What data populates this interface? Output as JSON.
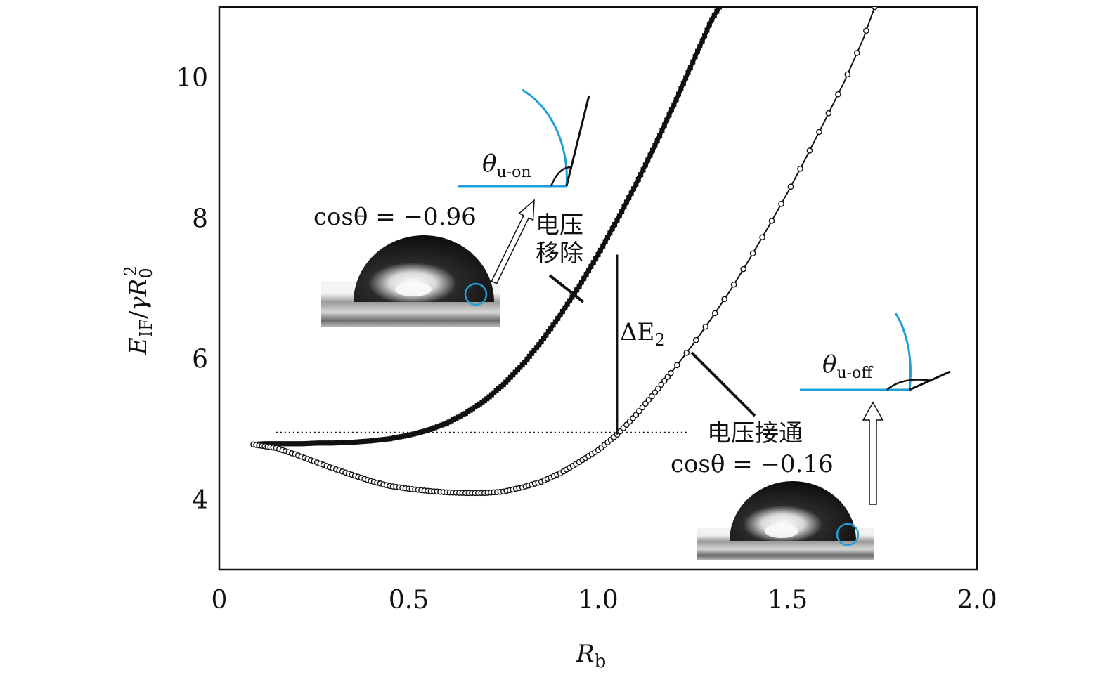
{
  "chart_data": {
    "type": "scatter",
    "xlabel": "R_b",
    "ylabel": "E_IF/γR_0^2",
    "xlim": [
      0,
      2.0
    ],
    "ylim": [
      3,
      11
    ],
    "x_ticks": [
      "0",
      "0.5",
      "1.0",
      "1.5",
      "2.0"
    ],
    "y_ticks": [
      "4",
      "6",
      "8",
      "10"
    ],
    "x_tick_values": [
      0,
      0.5,
      1.0,
      1.5,
      2.0
    ],
    "y_tick_values": [
      4,
      6,
      8,
      10
    ],
    "series": [
      {
        "marker": "filled-square",
        "x": [
          0.09,
          0.12,
          0.15,
          0.18,
          0.22,
          0.26,
          0.3,
          0.35,
          0.4,
          0.45,
          0.5,
          0.55,
          0.6,
          0.65,
          0.7,
          0.75,
          0.8,
          0.85,
          0.9,
          0.95,
          1.0,
          1.05,
          1.1,
          1.15,
          1.2,
          1.25,
          1.3,
          1.32
        ],
        "y": [
          4.78,
          4.79,
          4.79,
          4.79,
          4.79,
          4.8,
          4.8,
          4.81,
          4.83,
          4.86,
          4.91,
          4.98,
          5.08,
          5.22,
          5.4,
          5.63,
          5.91,
          6.24,
          6.62,
          7.03,
          7.48,
          7.97,
          8.48,
          9.03,
          9.61,
          10.22,
          10.82,
          11.0
        ]
      },
      {
        "marker": "open-circle",
        "x": [
          0.09,
          0.15,
          0.2,
          0.25,
          0.3,
          0.35,
          0.4,
          0.45,
          0.5,
          0.55,
          0.6,
          0.65,
          0.7,
          0.75,
          0.8,
          0.85,
          0.9,
          0.95,
          1.0,
          1.05,
          1.1,
          1.15,
          1.2,
          1.25,
          1.3,
          1.35,
          1.4,
          1.45,
          1.5,
          1.55,
          1.6,
          1.65,
          1.7,
          1.73
        ],
        "y": [
          4.78,
          4.73,
          4.64,
          4.54,
          4.44,
          4.35,
          4.26,
          4.19,
          4.15,
          4.12,
          4.1,
          4.09,
          4.09,
          4.11,
          4.17,
          4.25,
          4.37,
          4.53,
          4.7,
          4.92,
          5.2,
          5.52,
          5.85,
          6.2,
          6.58,
          6.98,
          7.42,
          7.88,
          8.36,
          8.87,
          9.4,
          9.94,
          10.55,
          11.0
        ]
      }
    ],
    "reference_line_y": 4.95,
    "delta_x": 1.05,
    "annotations": {
      "delta": "ΔE",
      "delta_sub": "2",
      "removed": [
        "电压",
        "移除"
      ],
      "applied": "电压接通",
      "cos_on": "cosθ = −0.96",
      "cos_off": "cosθ = −0.16",
      "theta": "θ",
      "theta_on_sub": "u-on",
      "theta_off_sub": "u-off"
    },
    "colors": {
      "axes": "#111111",
      "contact_angle": "#1e9fd8",
      "series": "#111111"
    }
  }
}
